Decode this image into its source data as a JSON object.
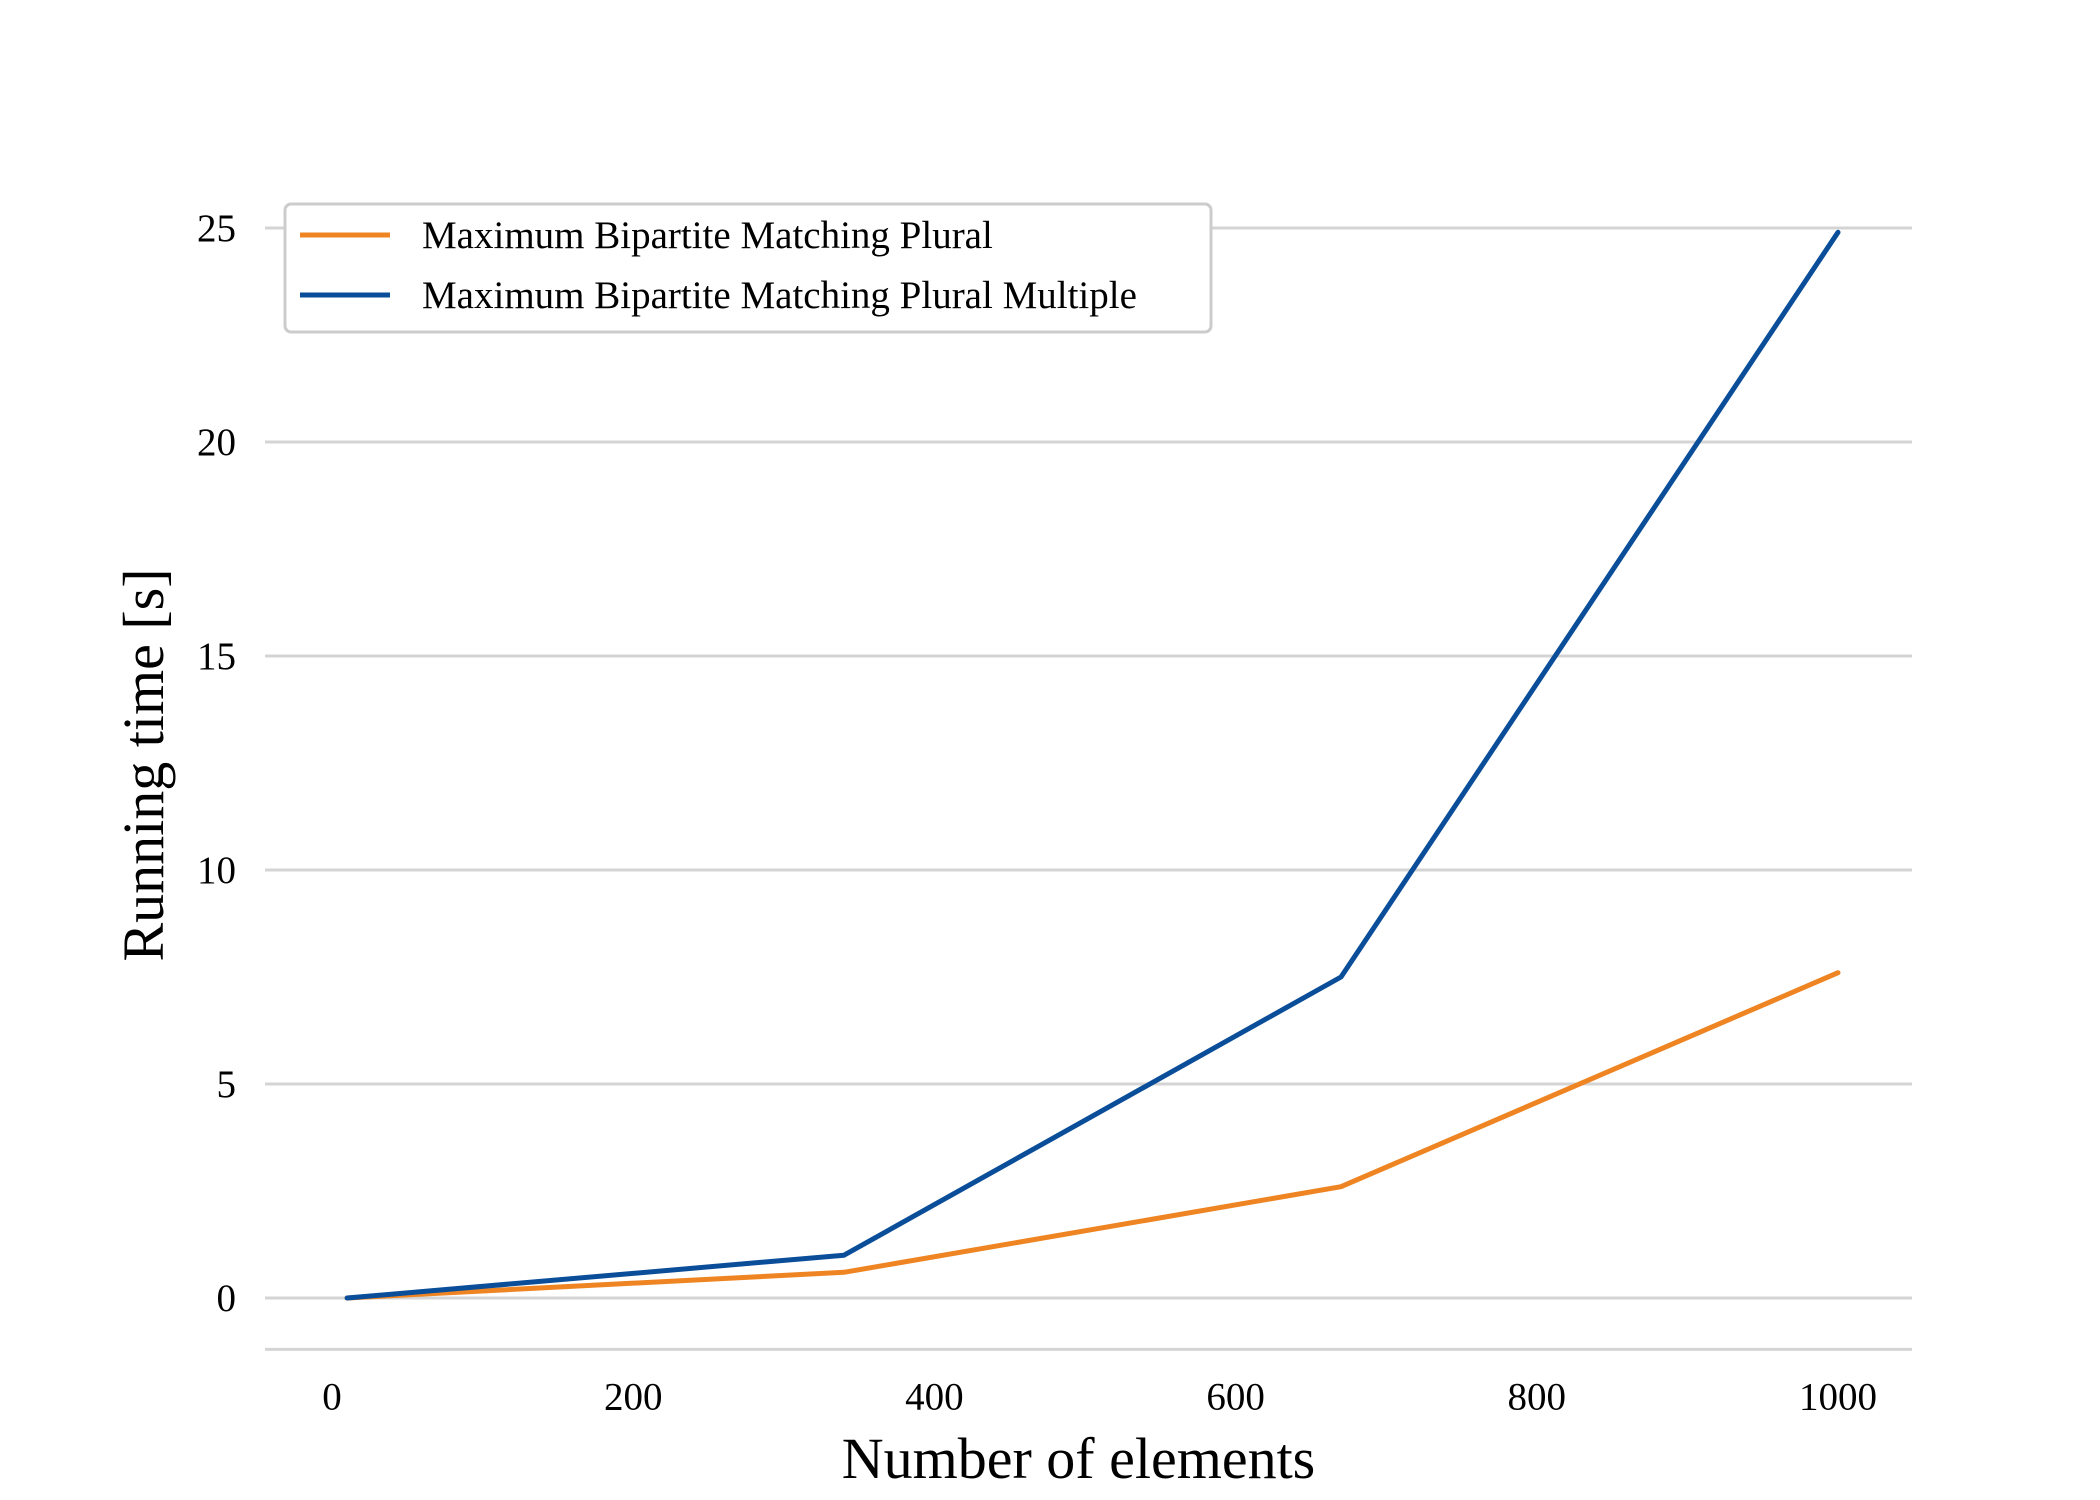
{
  "chart_data": {
    "type": "line",
    "title": "",
    "xlabel": "Number of elements",
    "ylabel": "Running time [s]",
    "xlim": [
      -20,
      1000
    ],
    "ylim": [
      -1.2,
      25.5
    ],
    "xticks": [
      0,
      200,
      400,
      600,
      800,
      1000
    ],
    "yticks": [
      0,
      5,
      10,
      15,
      20,
      25
    ],
    "grid": "horizontal",
    "legend_position": "top-left",
    "x": [
      10,
      340,
      670,
      1000
    ],
    "series": [
      {
        "name": "Maximum Bipartite Matching Plural",
        "color": "#ee8422",
        "values": [
          0.0,
          0.6,
          2.6,
          7.6
        ]
      },
      {
        "name": "Maximum Bipartite Matching Plural Multiple",
        "color": "#0a4d99",
        "values": [
          0.0,
          1.0,
          7.5,
          24.9
        ]
      }
    ]
  }
}
